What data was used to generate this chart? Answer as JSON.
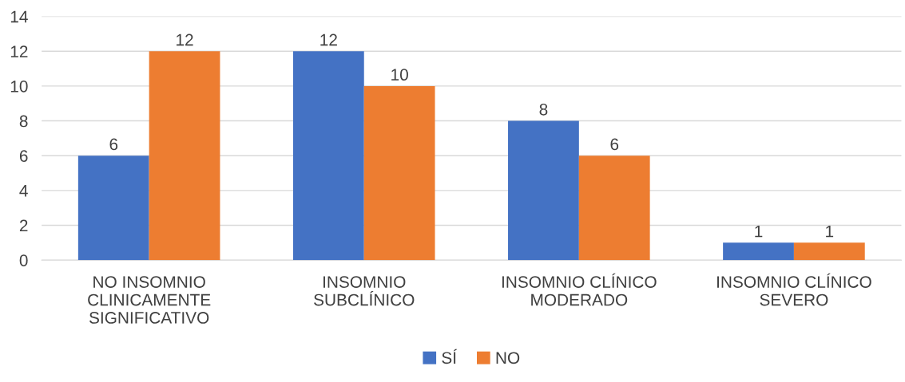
{
  "chart_data": {
    "type": "bar",
    "categories": [
      "NO INSOMNIO\nCLINICAMENTE\nSIGNIFICATIVO",
      "INSOMNIO\nSUBCLÍNICO",
      "INSOMNIO CLÍNICO\nMODERADO",
      "INSOMNIO CLÍNICO\nSEVERO"
    ],
    "series": [
      {
        "name": "SÍ",
        "color": "#4472c4",
        "values": [
          6,
          12,
          8,
          1
        ]
      },
      {
        "name": "NO",
        "color": "#ed7d31",
        "values": [
          12,
          10,
          6,
          1
        ]
      }
    ],
    "ylim": [
      0,
      14
    ],
    "yticks": [
      0,
      2,
      4,
      6,
      8,
      10,
      12,
      14
    ],
    "grid": "y",
    "legend": "bottom",
    "data_labels": true
  }
}
